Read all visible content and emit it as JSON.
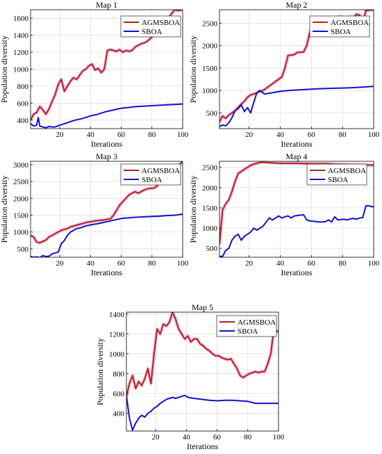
{
  "colors": {
    "agmsboa": "#a52a1a",
    "agmsboa_glow": "#ff66cc",
    "sboa": "#1010d0",
    "grid": "#d9d9d9",
    "axis": "#000000"
  },
  "chart_data": [
    {
      "type": "line",
      "title": "Map 1",
      "xlabel": "Iterations",
      "ylabel": "Population diversity",
      "xlim": [
        1,
        100
      ],
      "ylim": [
        300,
        1700
      ],
      "xticks": [
        20,
        40,
        60,
        80,
        100
      ],
      "yticks": [
        400,
        600,
        800,
        1000,
        1200,
        1400,
        1600
      ],
      "grid": true,
      "legend": "top-right",
      "series": [
        {
          "name": "AGMSBOA",
          "color": "#a52a1a",
          "x": [
            1,
            3,
            5,
            7,
            9,
            11,
            13,
            15,
            17,
            19,
            21,
            23,
            25,
            27,
            29,
            31,
            33,
            35,
            37,
            39,
            41,
            43,
            45,
            47,
            49,
            51,
            53,
            55,
            57,
            59,
            61,
            63,
            65,
            67,
            69,
            71,
            73,
            75,
            77,
            79,
            81,
            83,
            85,
            87,
            89,
            91,
            93,
            95,
            97,
            100
          ],
          "y": [
            400,
            470,
            490,
            560,
            520,
            470,
            530,
            620,
            700,
            820,
            880,
            740,
            800,
            860,
            900,
            880,
            930,
            980,
            1000,
            1040,
            1060,
            990,
            1010,
            960,
            1000,
            1220,
            1230,
            1220,
            1210,
            1230,
            1200,
            1220,
            1210,
            1220,
            1260,
            1280,
            1300,
            1310,
            1330,
            1360,
            1400,
            1410,
            1480,
            1500,
            1440,
            1600,
            1660,
            1700,
            1690,
            1700
          ]
        },
        {
          "name": "SBOA",
          "color": "#1010d0",
          "x": [
            1,
            3,
            5,
            6,
            7,
            9,
            11,
            13,
            15,
            17,
            20,
            25,
            30,
            35,
            40,
            45,
            50,
            55,
            60,
            65,
            70,
            75,
            80,
            85,
            90,
            95,
            100
          ],
          "y": [
            360,
            330,
            340,
            430,
            330,
            320,
            310,
            325,
            320,
            320,
            340,
            370,
            400,
            420,
            450,
            470,
            500,
            520,
            540,
            550,
            560,
            565,
            570,
            575,
            580,
            585,
            590
          ]
        }
      ]
    },
    {
      "type": "line",
      "title": "Map 2",
      "xlabel": "Iterations",
      "ylabel": "Population diversity",
      "xlim": [
        1,
        100
      ],
      "ylim": [
        150,
        2800
      ],
      "xticks": [
        20,
        40,
        60,
        80,
        100
      ],
      "yticks": [
        500,
        1000,
        1500,
        2000,
        2500
      ],
      "grid": true,
      "legend": "top-right",
      "series": [
        {
          "name": "AGMSBOA",
          "color": "#a52a1a",
          "x": [
            1,
            3,
            5,
            7,
            9,
            11,
            13,
            15,
            17,
            19,
            21,
            23,
            25,
            27,
            29,
            31,
            33,
            35,
            37,
            39,
            41,
            43,
            45,
            47,
            49,
            51,
            53,
            55,
            57,
            59,
            61,
            63,
            65,
            67,
            69,
            71,
            73,
            75,
            77,
            79,
            81,
            83,
            85,
            87,
            89,
            91,
            93,
            95,
            97,
            100
          ],
          "y": [
            300,
            430,
            380,
            450,
            500,
            550,
            620,
            700,
            760,
            850,
            900,
            920,
            950,
            980,
            1000,
            1050,
            1100,
            1150,
            1200,
            1250,
            1300,
            1500,
            1780,
            1790,
            1800,
            1850,
            1850,
            1860,
            2000,
            2300,
            2450,
            2500,
            2550,
            2600,
            2520,
            2580,
            2560,
            2600,
            2640,
            2650,
            2550,
            2600,
            2650,
            2620,
            2700,
            2680,
            2500,
            2780,
            2790,
            2800
          ]
        },
        {
          "name": "SBOA",
          "color": "#1010d0",
          "x": [
            1,
            3,
            5,
            7,
            9,
            11,
            13,
            15,
            17,
            19,
            21,
            23,
            25,
            27,
            30,
            35,
            40,
            45,
            50,
            55,
            60,
            65,
            70,
            75,
            80,
            85,
            90,
            95,
            100
          ],
          "y": [
            200,
            230,
            210,
            280,
            390,
            550,
            600,
            680,
            530,
            620,
            500,
            730,
            950,
            1000,
            920,
            950,
            980,
            1000,
            1010,
            1020,
            1030,
            1040,
            1045,
            1050,
            1055,
            1060,
            1070,
            1080,
            1090
          ]
        }
      ]
    },
    {
      "type": "line",
      "title": "Map 3",
      "xlabel": "Iterations",
      "ylabel": "Population diversity",
      "xlim": [
        1,
        100
      ],
      "ylim": [
        250,
        3100
      ],
      "xticks": [
        20,
        40,
        60,
        80,
        100
      ],
      "yticks": [
        500,
        1000,
        1500,
        2000,
        2500,
        3000
      ],
      "grid": true,
      "legend": "top-right",
      "series": [
        {
          "name": "AGMSBOA",
          "color": "#a52a1a",
          "x": [
            1,
            3,
            5,
            7,
            9,
            11,
            13,
            15,
            17,
            19,
            21,
            23,
            25,
            27,
            29,
            31,
            33,
            35,
            37,
            39,
            41,
            43,
            45,
            47,
            49,
            51,
            53,
            55,
            57,
            59,
            61,
            63,
            65,
            67,
            69,
            71,
            73,
            75,
            77,
            79,
            81,
            83,
            85,
            87,
            89,
            91,
            93,
            95,
            97,
            100
          ],
          "y": [
            900,
            850,
            700,
            680,
            720,
            760,
            850,
            900,
            950,
            1000,
            1050,
            1080,
            1100,
            1150,
            1180,
            1200,
            1230,
            1250,
            1280,
            1300,
            1310,
            1330,
            1340,
            1350,
            1360,
            1380,
            1390,
            1500,
            1650,
            1800,
            1900,
            2000,
            2100,
            2150,
            2200,
            2150,
            2200,
            2250,
            2280,
            2300,
            2300,
            2350,
            2500,
            2600,
            2550,
            2700,
            2800,
            2900,
            2950,
            3100
          ]
        },
        {
          "name": "SBOA",
          "color": "#1010d0",
          "x": [
            1,
            3,
            5,
            7,
            9,
            11,
            13,
            15,
            17,
            19,
            21,
            23,
            25,
            27,
            29,
            31,
            33,
            35,
            37,
            39,
            41,
            45,
            50,
            55,
            60,
            65,
            70,
            75,
            80,
            85,
            90,
            95,
            100
          ],
          "y": [
            270,
            250,
            260,
            240,
            300,
            270,
            280,
            350,
            380,
            400,
            650,
            750,
            900,
            1000,
            1050,
            1100,
            1120,
            1150,
            1180,
            1200,
            1220,
            1250,
            1300,
            1350,
            1400,
            1420,
            1440,
            1450,
            1460,
            1470,
            1490,
            1500,
            1530
          ]
        }
      ]
    },
    {
      "type": "line",
      "title": "Map 4",
      "xlabel": "Iterations",
      "ylabel": "Population diversity",
      "xlim": [
        1,
        100
      ],
      "ylim": [
        280,
        2650
      ],
      "xticks": [
        20,
        40,
        60,
        80,
        100
      ],
      "yticks": [
        500,
        1000,
        1500,
        2000,
        2500
      ],
      "grid": true,
      "legend": "top-right",
      "series": [
        {
          "name": "AGMSBOA",
          "color": "#a52a1a",
          "x": [
            1,
            3,
            5,
            7,
            9,
            11,
            13,
            15,
            17,
            19,
            21,
            23,
            25,
            27,
            29,
            31,
            35,
            40,
            45,
            50,
            55,
            60,
            65,
            70,
            75,
            80,
            85,
            90,
            95,
            100
          ],
          "y": [
            600,
            1450,
            1600,
            1700,
            1900,
            2150,
            2350,
            2400,
            2450,
            2500,
            2550,
            2580,
            2600,
            2620,
            2630,
            2620,
            2610,
            2600,
            2600,
            2600,
            2595,
            2590,
            2590,
            2590,
            2580,
            2575,
            2570,
            2565,
            2560,
            2555
          ]
        },
        {
          "name": "SBOA",
          "color": "#1010d0",
          "x": [
            1,
            3,
            5,
            7,
            9,
            11,
            13,
            15,
            17,
            19,
            21,
            23,
            25,
            27,
            29,
            31,
            33,
            35,
            37,
            39,
            41,
            43,
            45,
            47,
            49,
            51,
            53,
            55,
            57,
            59,
            61,
            63,
            65,
            67,
            69,
            71,
            73,
            75,
            77,
            79,
            81,
            83,
            85,
            87,
            89,
            91,
            93,
            95,
            97,
            100
          ],
          "y": [
            300,
            300,
            450,
            500,
            700,
            800,
            850,
            700,
            800,
            850,
            900,
            1000,
            950,
            1000,
            1050,
            1150,
            1250,
            1200,
            1250,
            1300,
            1250,
            1280,
            1300,
            1250,
            1300,
            1310,
            1320,
            1330,
            1200,
            1180,
            1170,
            1160,
            1150,
            1150,
            1160,
            1200,
            1150,
            1280,
            1200,
            1210,
            1220,
            1200,
            1230,
            1240,
            1220,
            1250,
            1260,
            1550,
            1550,
            1520
          ]
        }
      ]
    },
    {
      "type": "line",
      "title": "Map 5",
      "xlabel": "Iterations",
      "ylabel": "Population diversity",
      "xlim": [
        1,
        100
      ],
      "ylim": [
        220,
        1420
      ],
      "xticks": [
        20,
        40,
        60,
        80,
        100
      ],
      "yticks": [
        400,
        600,
        800,
        1000,
        1200,
        1400
      ],
      "grid": true,
      "legend": "top-right",
      "series": [
        {
          "name": "AGMSBOA",
          "color": "#a52a1a",
          "x": [
            1,
            3,
            5,
            7,
            9,
            11,
            13,
            15,
            17,
            19,
            21,
            23,
            25,
            27,
            29,
            31,
            33,
            35,
            37,
            39,
            41,
            43,
            45,
            47,
            49,
            51,
            53,
            55,
            57,
            59,
            61,
            63,
            65,
            67,
            69,
            71,
            73,
            75,
            77,
            79,
            81,
            83,
            85,
            87,
            89,
            91,
            93,
            95,
            97,
            100
          ],
          "y": [
            570,
            700,
            780,
            650,
            720,
            680,
            750,
            850,
            700,
            1000,
            1250,
            1200,
            1300,
            1280,
            1320,
            1420,
            1350,
            1250,
            1200,
            1150,
            1180,
            1120,
            1150,
            1150,
            1100,
            1080,
            1050,
            1030,
            1000,
            980,
            980,
            960,
            950,
            940,
            950,
            900,
            850,
            780,
            760,
            780,
            800,
            810,
            820,
            810,
            820,
            820,
            900,
            1000,
            1250,
            1220
          ]
        },
        {
          "name": "SBOA",
          "color": "#1010d0",
          "x": [
            1,
            3,
            5,
            7,
            9,
            11,
            13,
            15,
            17,
            19,
            21,
            23,
            25,
            27,
            29,
            31,
            33,
            35,
            37,
            39,
            41,
            45,
            50,
            55,
            60,
            65,
            70,
            75,
            80,
            85,
            90,
            95,
            100
          ],
          "y": [
            580,
            350,
            230,
            300,
            350,
            380,
            360,
            400,
            420,
            450,
            470,
            500,
            520,
            540,
            550,
            560,
            550,
            560,
            570,
            580,
            560,
            550,
            540,
            530,
            525,
            530,
            530,
            525,
            520,
            500,
            500,
            500,
            500
          ]
        }
      ]
    }
  ]
}
